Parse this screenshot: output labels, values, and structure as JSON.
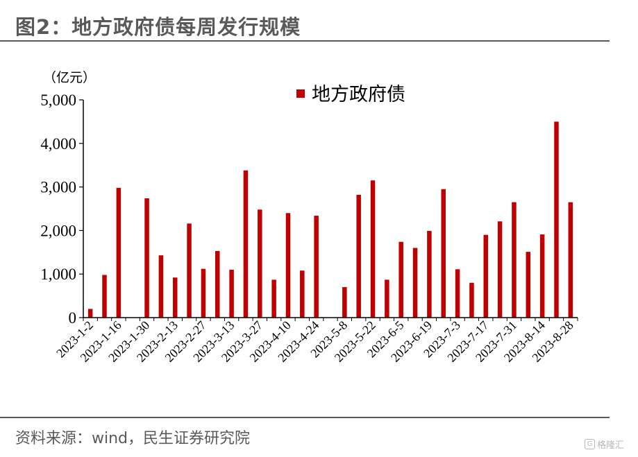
{
  "figure": {
    "title": "图2：地方政府债每周发行规模",
    "source": "资料来源：wind，民生证券研究院",
    "watermark": "格隆汇",
    "watermark_icon": "G"
  },
  "chart_data": {
    "type": "bar",
    "unit_label": "（亿元）",
    "ylim": [
      0,
      5000
    ],
    "yticks": [
      "0",
      "1,000",
      "2,000",
      "3,000",
      "4,000",
      "5,000"
    ],
    "ytick_values": [
      0,
      1000,
      2000,
      3000,
      4000,
      5000
    ],
    "grid": false,
    "legend_position": "top-center",
    "bar_color": "#C00000",
    "xtick_labels": [
      "2023-1-2",
      "2023-1-16",
      "2023-1-30",
      "2023-2-13",
      "2023-2-27",
      "2023-3-13",
      "2023-3-27",
      "2023-4-10",
      "2023-4-24",
      "2023-5-8",
      "2023-5-22",
      "2023-6-5",
      "2023-6-19",
      "2023-7-3",
      "2023-7-17",
      "2023-7-31",
      "2023-8-14",
      "2023-8-28"
    ],
    "categories": [
      "2023-1-2",
      "2023-1-9",
      "2023-1-16",
      "2023-1-23",
      "2023-1-30",
      "2023-2-6",
      "2023-2-13",
      "2023-2-20",
      "2023-2-27",
      "2023-3-6",
      "2023-3-13",
      "2023-3-20",
      "2023-3-27",
      "2023-4-3",
      "2023-4-10",
      "2023-4-17",
      "2023-4-24",
      "2023-5-1",
      "2023-5-8",
      "2023-5-15",
      "2023-5-22",
      "2023-5-29",
      "2023-6-5",
      "2023-6-12",
      "2023-6-19",
      "2023-6-26",
      "2023-7-3",
      "2023-7-10",
      "2023-7-17",
      "2023-7-24",
      "2023-7-31",
      "2023-8-7",
      "2023-8-14",
      "2023-8-21",
      "2023-8-28"
    ],
    "series": [
      {
        "name": "地方政府债",
        "values": [
          200,
          980,
          2980,
          0,
          2740,
          1430,
          920,
          2160,
          1120,
          1530,
          1100,
          3380,
          2480,
          870,
          2400,
          1080,
          2340,
          0,
          700,
          2820,
          3150,
          870,
          1740,
          1600,
          1990,
          2950,
          1110,
          800,
          1900,
          2210,
          2650,
          1510,
          1910,
          4500,
          2650
        ]
      }
    ]
  }
}
